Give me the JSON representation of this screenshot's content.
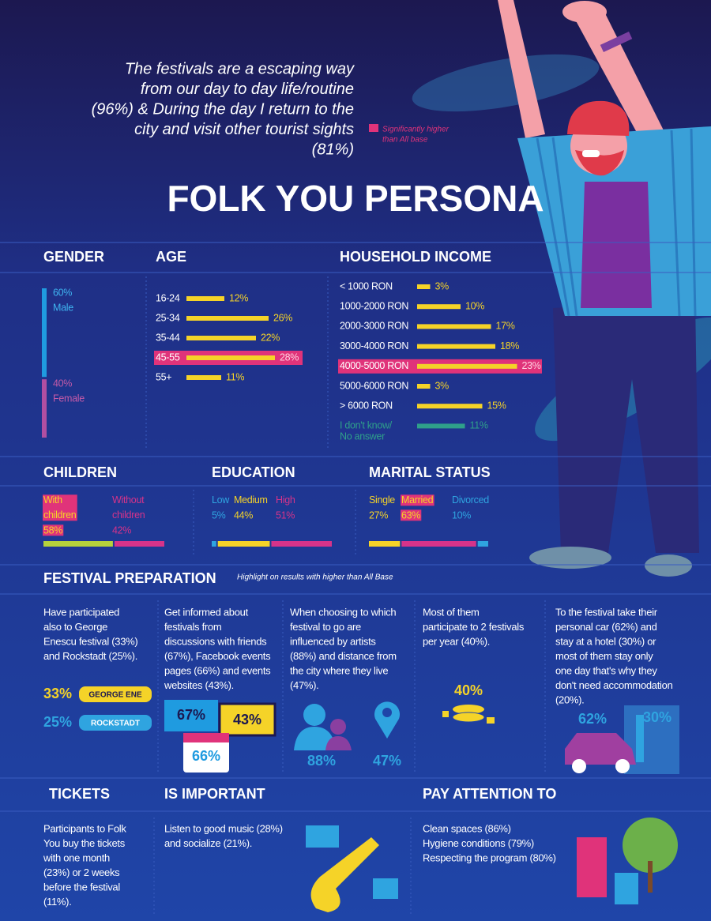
{
  "quote": {
    "lines": [
      "The festivals are a escaping way",
      "from our day to day life/routine",
      "(96%) & During the day I return to the",
      "city and visit other tourist sights",
      "(81%)"
    ]
  },
  "legend_note": [
    "Significantly higher",
    "than All base"
  ],
  "title": "FOLK YOU PERSONA",
  "gender": {
    "title": "GENDER",
    "items": [
      {
        "label": "Male",
        "value": 60,
        "value_label": "60%",
        "color": "#1f9be0"
      },
      {
        "label": "Female",
        "value": 40,
        "value_label": "40%",
        "color": "#b04fa2"
      }
    ]
  },
  "age": {
    "title": "AGE",
    "color": "#f5d328",
    "items": [
      {
        "label": "16-24",
        "value": 12,
        "value_label": "12%"
      },
      {
        "label": "25-34",
        "value": 26,
        "value_label": "26%"
      },
      {
        "label": "35-44",
        "value": 22,
        "value_label": "22%"
      },
      {
        "label": "45-55",
        "value": 28,
        "value_label": "28%",
        "highlight": true
      },
      {
        "label": "55+",
        "value": 11,
        "value_label": "11%"
      }
    ]
  },
  "income": {
    "title": "HOUSEHOLD INCOME",
    "color": "#f5d328",
    "items": [
      {
        "label": "< 1000 RON",
        "value": 3,
        "value_label": "3%"
      },
      {
        "label": "1000-2000 RON",
        "value": 10,
        "value_label": "10%"
      },
      {
        "label": "2000-3000 RON",
        "value": 17,
        "value_label": "17%"
      },
      {
        "label": "3000-4000 RON",
        "value": 18,
        "value_label": "18%"
      },
      {
        "label": "4000-5000 RON",
        "value": 23,
        "value_label": "23%",
        "highlight": true
      },
      {
        "label": "5000-6000 RON",
        "value": 3,
        "value_label": "3%"
      },
      {
        "label": "> 6000 RON",
        "value": 15,
        "value_label": "15%"
      },
      {
        "label": "I don't know/ No answer",
        "value": 11,
        "value_label": "11%",
        "color": "#2fa08a"
      }
    ]
  },
  "children": {
    "title": "CHILDREN",
    "items": [
      {
        "label": "With children",
        "value": 58,
        "value_label": "58%",
        "color": "#b6d33c",
        "highlight": true
      },
      {
        "label": "Without children",
        "value": 42,
        "value_label": "42%",
        "color": "#d6338a"
      }
    ]
  },
  "education": {
    "title": "EDUCATION",
    "items": [
      {
        "label": "Low",
        "value": 5,
        "value_label": "5%",
        "color": "#2fa4e0"
      },
      {
        "label": "Medium",
        "value": 44,
        "value_label": "44%",
        "color": "#f5d328"
      },
      {
        "label": "High",
        "value": 51,
        "value_label": "51%",
        "color": "#d6338a"
      }
    ]
  },
  "marital": {
    "title": "MARITAL STATUS",
    "items": [
      {
        "label": "Single",
        "value": 27,
        "value_label": "27%",
        "color": "#f5d328"
      },
      {
        "label": "Married",
        "value": 63,
        "value_label": "63%",
        "color": "#d6338a",
        "highlight": true
      },
      {
        "label": "Divorced",
        "value": 10,
        "value_label": "10%",
        "color": "#2fa4e0"
      }
    ]
  },
  "festival_preparation": {
    "title": "FESTIVAL PREPARATION",
    "note": "Highlight on results with higher than All Base",
    "columns": [
      {
        "lines": [
          "Have participated",
          "also to George",
          "Enescu festival (33%)",
          "and Rockstadt (25%)."
        ],
        "figures": [
          "33%",
          "25%"
        ],
        "badges": [
          "GEORGE ENE",
          "ROCKSTADT"
        ]
      },
      {
        "lines": [
          "Get informed about",
          "festivals from",
          "discussions with friends",
          "(67%), Facebook events",
          "pages (66%) and events",
          "websites (43%)."
        ],
        "figures": [
          "67%",
          "43%",
          "66%"
        ]
      },
      {
        "lines": [
          "When choosing to which",
          "festival to go are",
          "influenced by artists",
          "(88%) and distance from",
          "the city where they live",
          "(47%)."
        ],
        "figures": [
          "88%",
          "47%"
        ]
      },
      {
        "lines": [
          "Most of them",
          "participate to 2 festivals",
          "per year (40%)."
        ],
        "figures": [
          "40%"
        ]
      },
      {
        "lines": [
          "To the festival take their",
          "personal car (62%) and",
          "stay at a hotel (30%) or",
          "most of them stay only",
          "one day that's why they",
          "don't need accommodation",
          "(20%)."
        ],
        "figures": [
          "62%",
          "30%"
        ]
      }
    ]
  },
  "tickets": {
    "title": "TICKETS",
    "lines": [
      "Participants to Folk",
      "You buy the tickets",
      "with one month",
      "(23%) or 2 weeks",
      "before the festival",
      "(11%)."
    ]
  },
  "important": {
    "title": "IS IMPORTANT",
    "lines": [
      "Listen to good music (28%)",
      "and socialize (21%)."
    ]
  },
  "attention": {
    "title": "PAY ATTENTION TO",
    "lines": [
      "Clean spaces (86%)",
      "Hygiene conditions (79%)",
      "Respecting the program  (80%)"
    ]
  }
}
